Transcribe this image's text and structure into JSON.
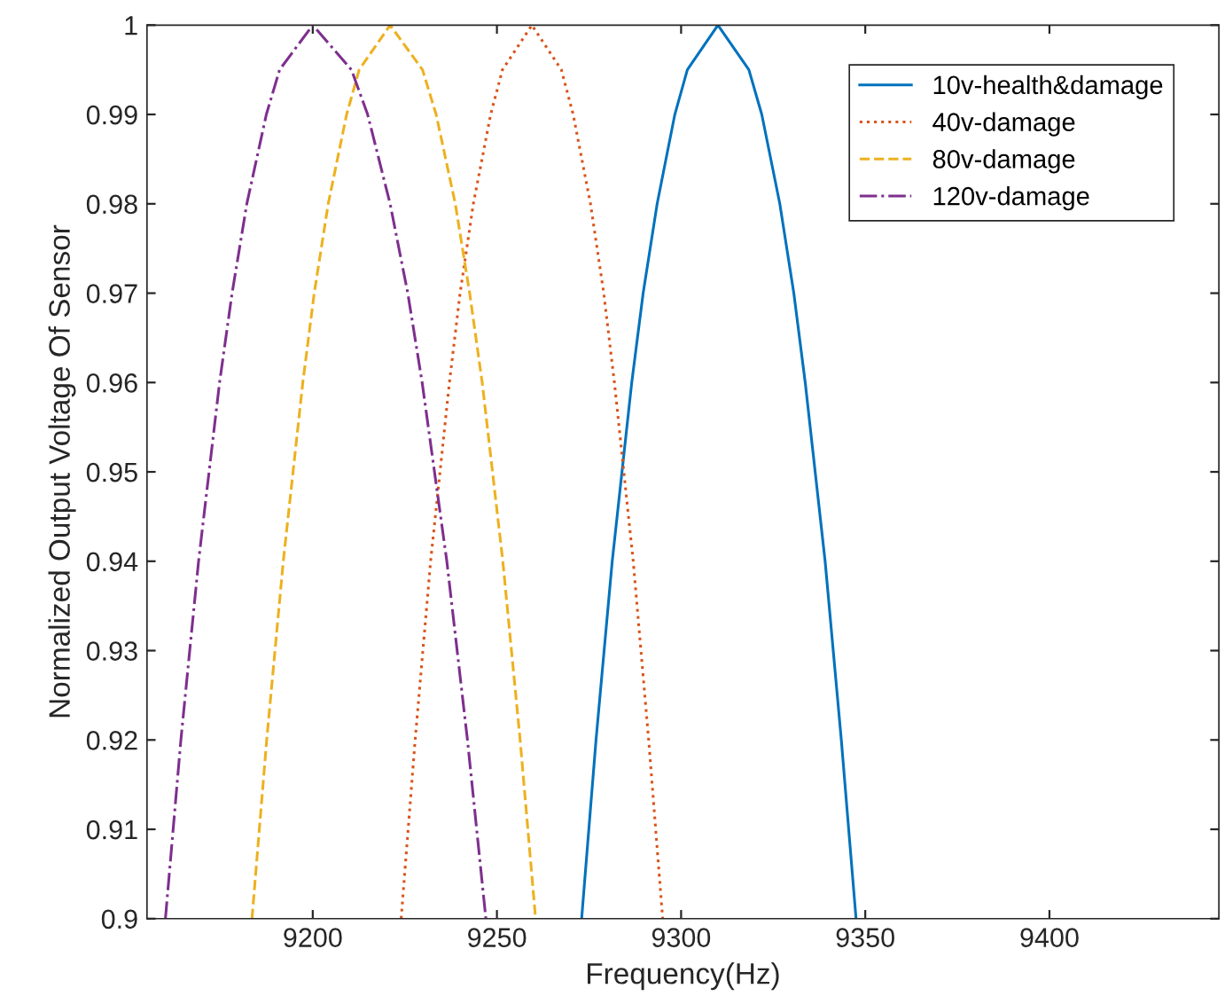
{
  "chart_data": {
    "type": "line",
    "xlabel": "Frequency(Hz)",
    "ylabel": "Normalized Output Voltage Of Sensor",
    "xlim": [
      9155,
      9446
    ],
    "ylim": [
      0.9,
      1.0
    ],
    "xticks": [
      9200,
      9250,
      9300,
      9350,
      9400
    ],
    "yticks": [
      0.9,
      0.91,
      0.92,
      0.93,
      0.94,
      0.95,
      0.96,
      0.97,
      0.98,
      0.99,
      1
    ],
    "grid": false,
    "legend": "top right",
    "marker": "none",
    "series": [
      {
        "name": "10v-health&damage",
        "color": "#0072bd",
        "line_style": "solid",
        "x": [
          9273,
          9276.9,
          9281.3,
          9286.6,
          9289.7,
          9293.5,
          9298.3,
          9301.7,
          9310,
          9318.4,
          9321.9,
          9326.8,
          9330.6,
          9333.7,
          9339.1,
          9343.5,
          9347.5
        ],
        "values": [
          0.9,
          0.92,
          0.94,
          0.96,
          0.97,
          0.98,
          0.99,
          0.995,
          1,
          0.995,
          0.99,
          0.98,
          0.97,
          0.96,
          0.94,
          0.92,
          0.9
        ]
      },
      {
        "name": "40v-damage",
        "color": "#d95319",
        "line_style": "dotted",
        "x": [
          9224,
          9227.8,
          9232,
          9237.1,
          9240,
          9243.6,
          9248.3,
          9251.5,
          9259.5,
          9267.5,
          9270.7,
          9275.4,
          9279,
          9281.9,
          9287,
          9291.2,
          9295
        ],
        "values": [
          0.9,
          0.92,
          0.94,
          0.96,
          0.97,
          0.98,
          0.99,
          0.995,
          1,
          0.995,
          0.99,
          0.98,
          0.97,
          0.96,
          0.94,
          0.92,
          0.9
        ]
      },
      {
        "name": "80v-damage",
        "color": "#edb120",
        "line_style": "dashed",
        "x": [
          9183.5,
          9187.5,
          9192,
          9197.3,
          9200.4,
          9204.2,
          9209.2,
          9212.6,
          9221,
          9229.8,
          9233.5,
          9238.7,
          9242.6,
          9246,
          9251.6,
          9256.3,
          9260.5
        ],
        "values": [
          0.9,
          0.92,
          0.94,
          0.96,
          0.97,
          0.98,
          0.99,
          0.995,
          1,
          0.995,
          0.99,
          0.98,
          0.97,
          0.96,
          0.94,
          0.92,
          0.9
        ]
      },
      {
        "name": "120v-damage",
        "color": "#7e2f8e",
        "line_style": "dashdot",
        "x": [
          9160,
          9164.2,
          9169,
          9174.7,
          9178.1,
          9182.1,
          9187.4,
          9191,
          9200,
          9210.5,
          9214.9,
          9221,
          9225.8,
          9229.7,
          9236.4,
          9242,
          9247
        ],
        "values": [
          0.9,
          0.92,
          0.94,
          0.96,
          0.97,
          0.98,
          0.99,
          0.995,
          1,
          0.995,
          0.99,
          0.98,
          0.97,
          0.96,
          0.94,
          0.92,
          0.9
        ]
      }
    ]
  }
}
